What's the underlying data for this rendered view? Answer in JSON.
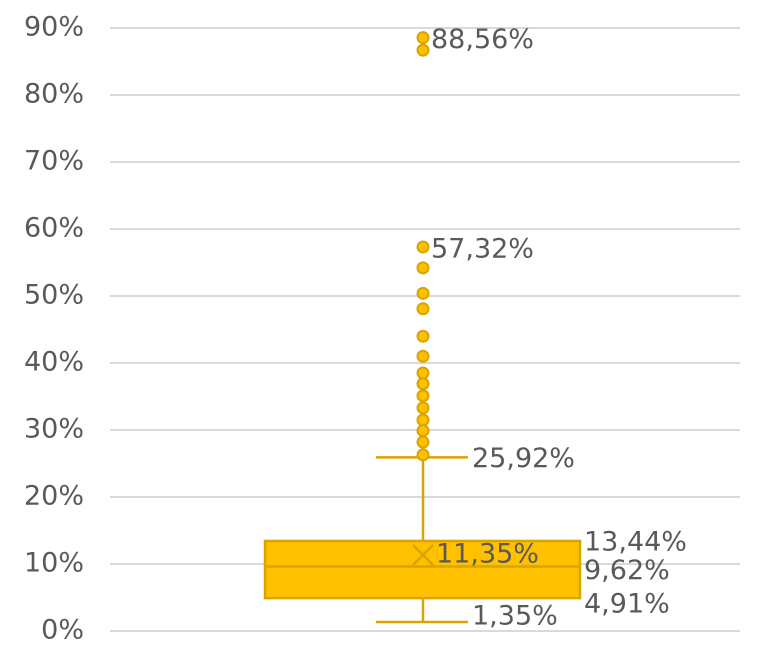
{
  "chart_data": {
    "type": "box",
    "ylim": [
      0,
      90
    ],
    "yticks": [
      {
        "value": 0,
        "label": "0%"
      },
      {
        "value": 10,
        "label": "10%"
      },
      {
        "value": 20,
        "label": "20%"
      },
      {
        "value": 30,
        "label": "30%"
      },
      {
        "value": 40,
        "label": "40%"
      },
      {
        "value": 50,
        "label": "50%"
      },
      {
        "value": 60,
        "label": "60%"
      },
      {
        "value": 70,
        "label": "70%"
      },
      {
        "value": 80,
        "label": "80%"
      },
      {
        "value": 90,
        "label": "90%"
      }
    ],
    "grid": true,
    "color": "#ffc000",
    "edge_color": "#d9a300",
    "box": {
      "min": 1.35,
      "q1": 4.91,
      "median": 9.62,
      "q3": 13.44,
      "max": 25.92,
      "mean": 11.35,
      "value_labels": {
        "min": "1,35%",
        "q1": "4,91%",
        "median": "9,62%",
        "q3": "13,44%",
        "max": "25,92%",
        "mean": "11,35%"
      },
      "outliers": [
        88.56,
        86.7,
        57.32,
        54.2,
        50.4,
        48.1,
        44.0,
        41.0,
        38.5,
        36.9,
        35.1,
        33.3,
        31.5,
        29.9,
        28.2,
        26.3
      ],
      "outlier_labels": [
        "88,56%",
        null,
        "57,32%",
        null,
        null,
        null,
        null,
        null,
        null,
        null,
        null,
        null,
        null,
        null,
        null,
        null
      ]
    }
  }
}
